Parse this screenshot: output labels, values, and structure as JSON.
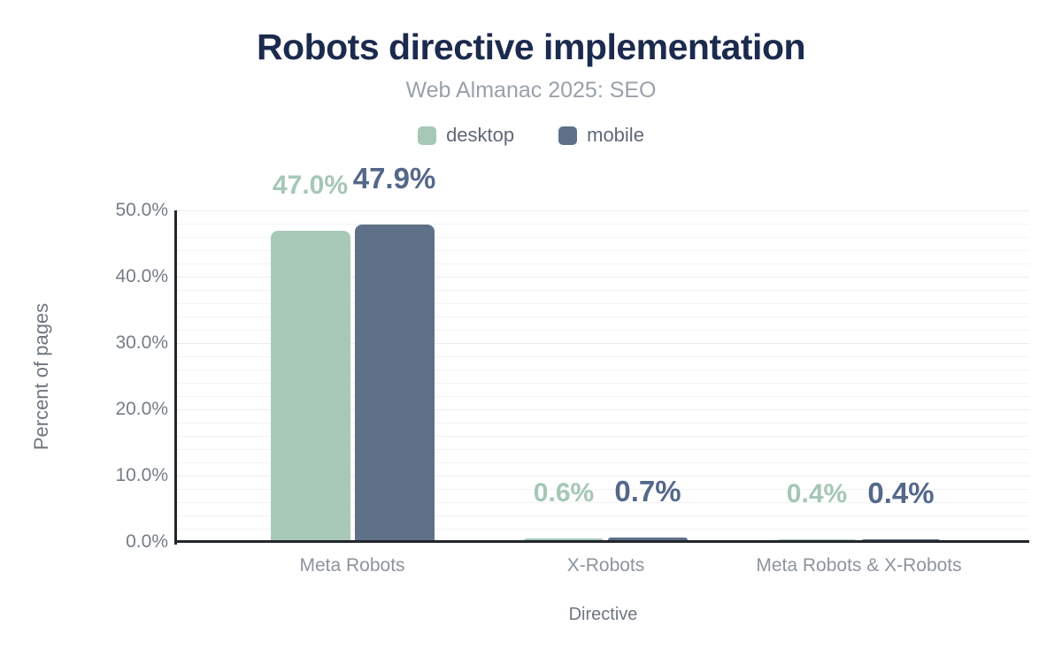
{
  "chart_data": {
    "type": "bar",
    "title": "Robots directive implementation",
    "subtitle": "Web Almanac 2025: SEO",
    "xlabel": "Directive",
    "ylabel": "Percent of pages",
    "categories": [
      "Meta Robots",
      "X-Robots",
      "Meta Robots & X-Robots"
    ],
    "series": [
      {
        "name": "desktop",
        "color": "#a8c8b7",
        "label_color": "#a5c7b5",
        "values": [
          47.0,
          0.6,
          0.4
        ],
        "value_labels": [
          "47.0%",
          "0.6%",
          "0.4%"
        ]
      },
      {
        "name": "mobile",
        "color": "#5f7089",
        "label_color": "#55688a",
        "values": [
          47.9,
          0.7,
          0.4
        ],
        "value_labels": [
          "47.9%",
          "0.7%",
          "0.4%"
        ]
      }
    ],
    "ylim": [
      0,
      50
    ],
    "ytick_step": 10,
    "ytick_labels": [
      "0.0%",
      "10.0%",
      "20.0%",
      "30.0%",
      "40.0%",
      "50.0%"
    ],
    "grid": {
      "minor_step_pct": 2,
      "major_step_pct": 10,
      "on": true
    },
    "legend_position": "top",
    "colors": {
      "title": "#1c2a4e",
      "subtitle": "#9aa1ab",
      "legend_label": "#5f6977",
      "axis_line": "#23272e",
      "tick_label": "#757d87",
      "category_label": "#8d949d",
      "axis_title": "#6f7680",
      "grid_minor": "#f1f3f5",
      "grid_major": "#e9ecef",
      "background": "#ffffff"
    }
  }
}
